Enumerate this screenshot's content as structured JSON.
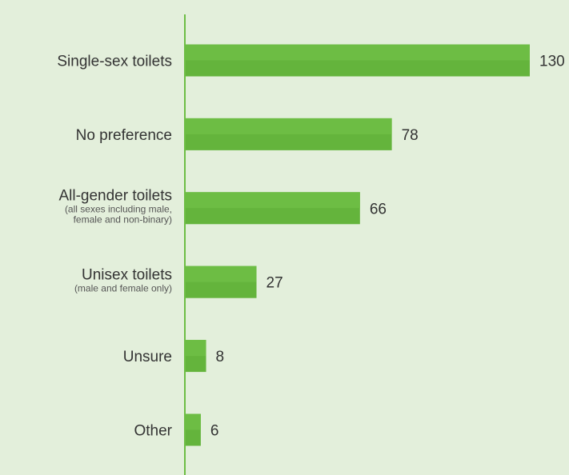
{
  "chart_data": {
    "type": "bar",
    "orientation": "horizontal",
    "categories": [
      "Single-sex toilets",
      "No preference",
      "All-gender toilets",
      "Unisex toilets",
      "Unsure",
      "Other"
    ],
    "sublabels": [
      "",
      "",
      "(all sexes including male,\nfemale and non-binary)",
      "(male and female only)",
      "",
      ""
    ],
    "values": [
      130,
      78,
      66,
      27,
      8,
      6
    ],
    "value_labels": [
      "130",
      "78",
      "66",
      "27",
      "8",
      "6"
    ],
    "bar_color": "#64b43c",
    "bar_color_light": "#6dbd44",
    "axis_color": "#6dbd44",
    "xlim": [
      0,
      130
    ],
    "grid": false,
    "legend": "none"
  }
}
